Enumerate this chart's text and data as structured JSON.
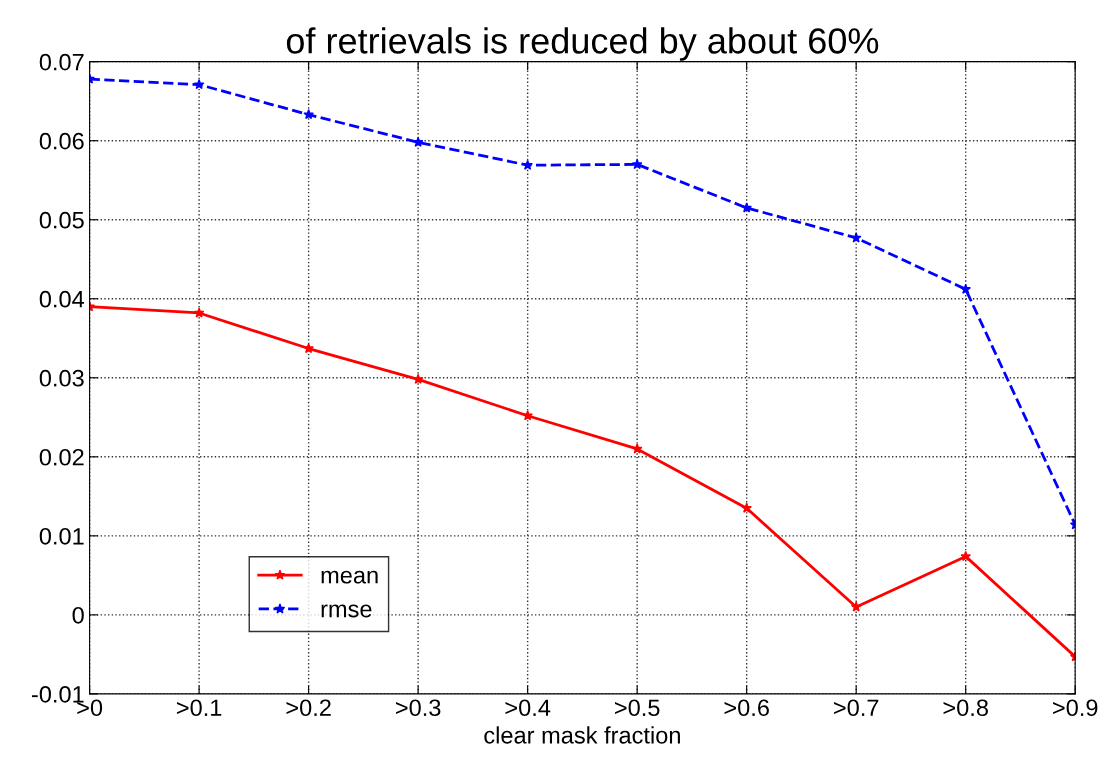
{
  "chart_data": {
    "type": "line",
    "title": "of retrievals is reduced by about 60%",
    "xlabel": "clear mask fraction",
    "categories": [
      ">0",
      ">0.1",
      ">0.2",
      ">0.3",
      ">0.4",
      ">0.5",
      ">0.6",
      ">0.7",
      ">0.8",
      ">0.9"
    ],
    "series": [
      {
        "name": "mean",
        "color": "#ff0000",
        "line_style": "solid",
        "values": [
          0.039,
          0.0382,
          0.0337,
          0.0298,
          0.0252,
          0.021,
          0.0135,
          0.001,
          0.0074,
          -0.0053
        ]
      },
      {
        "name": "rmse",
        "color": "#0000ff",
        "line_style": "dashed",
        "values": [
          0.0678,
          0.0671,
          0.0633,
          0.0598,
          0.0569,
          0.057,
          0.0515,
          0.0477,
          0.0412,
          0.0114
        ]
      }
    ],
    "ylim": [
      -0.01,
      0.07
    ],
    "yticks": [
      -0.01,
      0,
      0.01,
      0.02,
      0.03,
      0.04,
      0.05,
      0.06,
      0.07
    ],
    "grid": true,
    "legend": "bottom left",
    "marker": "star"
  }
}
